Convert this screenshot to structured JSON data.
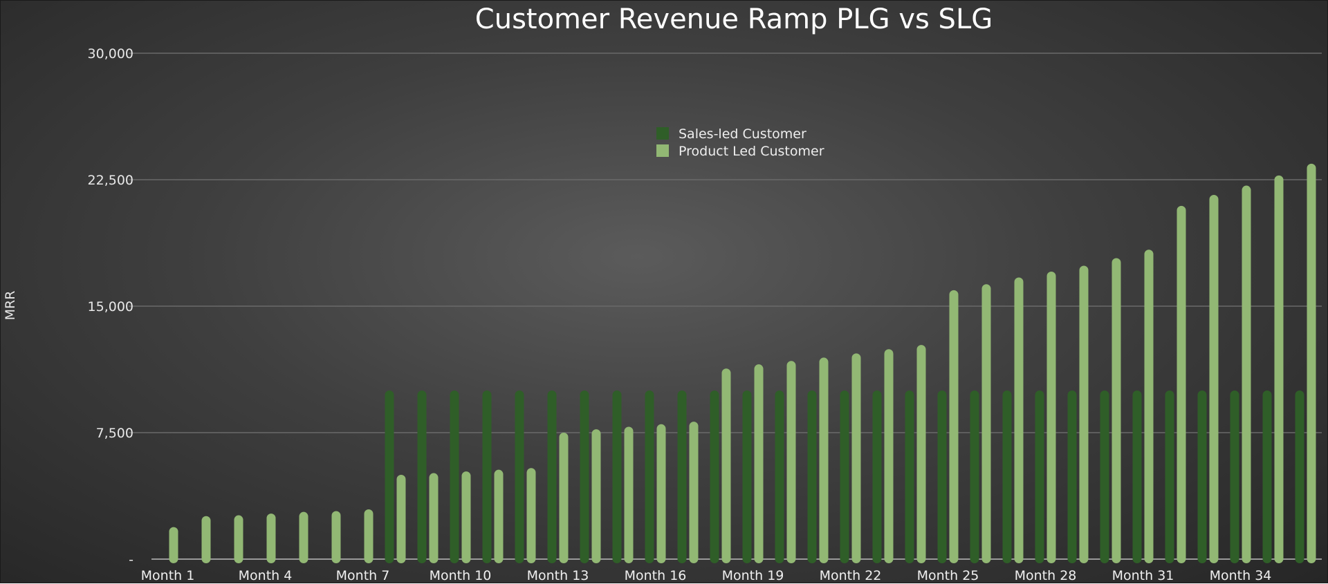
{
  "chart_data": {
    "type": "bar",
    "title": "Customer Revenue Ramp PLG vs SLG",
    "ylabel": "MRR",
    "xlabel": "",
    "ylim": [
      0,
      30000
    ],
    "y_ticks": [
      {
        "value": 0,
        "label": "-"
      },
      {
        "value": 7500,
        "label": "7,500"
      },
      {
        "value": 15000,
        "label": "15,000"
      },
      {
        "value": 22500,
        "label": "22,500"
      },
      {
        "value": 30000,
        "label": "30,000"
      }
    ],
    "categories": [
      "Month 1",
      "Month 2",
      "Month 3",
      "Month 4",
      "Month 5",
      "Month 6",
      "Month 7",
      "Month 8",
      "Month 9",
      "Month 10",
      "Month 11",
      "Month 12",
      "Month 13",
      "Month 14",
      "Month 15",
      "Month 16",
      "Month 17",
      "Month 18",
      "Month 19",
      "Month 20",
      "Month 21",
      "Month 22",
      "Month 23",
      "Month 24",
      "Month 25",
      "Month 26",
      "Month 27",
      "Month 28",
      "Month 29",
      "Month 30",
      "Month 31",
      "Month 32",
      "Month 33",
      "Month 34",
      "Month 35",
      "Month 36"
    ],
    "x_tick_labels": [
      "Month 1",
      "Month 4",
      "Month 7",
      "Month 10",
      "Month 13",
      "Month 16",
      "Month 19",
      "Month 22",
      "Month 25",
      "Month 28",
      "Month 31",
      "Month 34"
    ],
    "grid": true,
    "legend_position": "top-center",
    "series": [
      {
        "name": "Sales-led Customer",
        "color": "#2f5e28",
        "values": [
          0,
          0,
          0,
          0,
          0,
          0,
          0,
          10000,
          10000,
          10000,
          10000,
          10000,
          10000,
          10000,
          10000,
          10000,
          10000,
          10000,
          10000,
          10000,
          10000,
          10000,
          10000,
          10000,
          10000,
          10000,
          10000,
          10000,
          10000,
          10000,
          10000,
          10000,
          10000,
          10000,
          10000,
          10000
        ]
      },
      {
        "name": "Product Led Customer",
        "color": "#92b874",
        "values": [
          1900,
          2550,
          2600,
          2700,
          2800,
          2850,
          2950,
          5000,
          5100,
          5200,
          5300,
          5400,
          7500,
          7700,
          7850,
          8000,
          8150,
          11300,
          11550,
          11750,
          11950,
          12200,
          12450,
          12700,
          15950,
          16300,
          16700,
          17050,
          17400,
          17850,
          18350,
          20950,
          21600,
          22150,
          22750,
          23450
        ]
      }
    ]
  }
}
